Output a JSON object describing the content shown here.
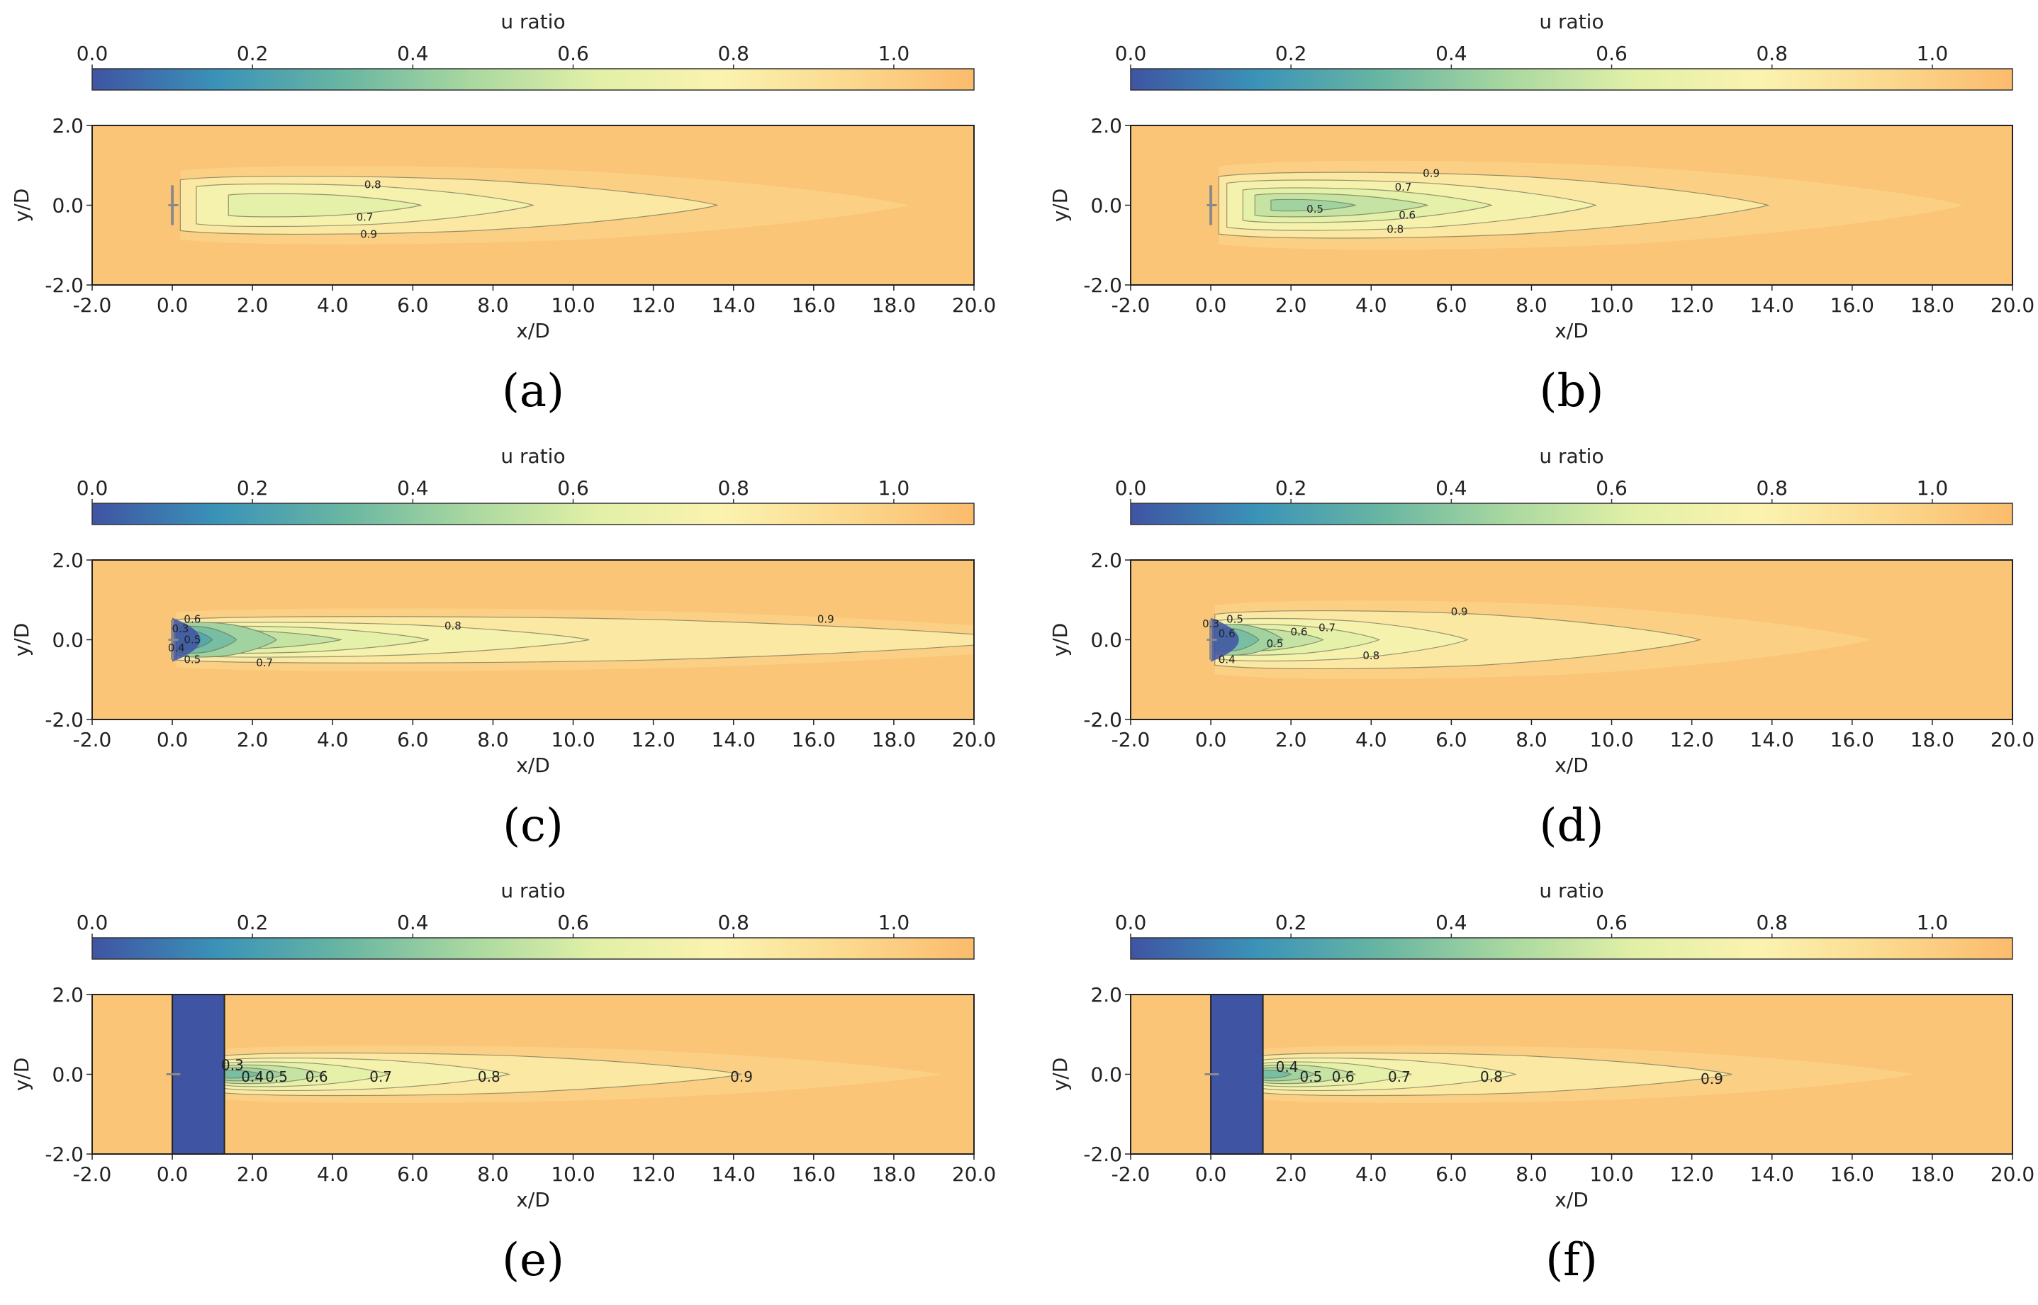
{
  "figure": {
    "colors": {
      "background": "#fbc578",
      "stops": [
        "#3f54a3",
        "#3a93b8",
        "#69b6a2",
        "#a9d8a0",
        "#e2f0a7",
        "#fbf3b0",
        "#fbd98e",
        "#fbbb6c"
      ]
    },
    "panels": [
      {
        "caption": "(a)",
        "colorbar": {
          "label": "u ratio",
          "ticks": [
            "0.0",
            "0.2",
            "0.4",
            "0.6",
            "0.8",
            "1.0"
          ],
          "range": [
            0,
            1.1
          ]
        },
        "chart_data": {
          "type": "heatmap",
          "title": "",
          "xlabel": "x/D",
          "ylabel": "y/D",
          "xlim": [
            -2,
            20
          ],
          "ylim": [
            -2,
            2
          ],
          "xticks": [
            "-2.0",
            "0.0",
            "2.0",
            "4.0",
            "6.0",
            "8.0",
            "10.0",
            "12.0",
            "14.0",
            "16.0",
            "18.0",
            "20.0"
          ],
          "yticks": [
            "2.0",
            "0.0",
            "-2.0"
          ],
          "blockage": null,
          "contours": [
            {
              "level": 0.9,
              "x_start": 0.2,
              "x_end": 13.6,
              "half_width": 0.75
            },
            {
              "level": 0.8,
              "x_start": 0.6,
              "x_end": 9.0,
              "half_width": 0.55
            },
            {
              "level": 0.7,
              "x_start": 1.4,
              "x_end": 6.2,
              "half_width": 0.3
            }
          ],
          "contour_labels": [
            {
              "text": "0.8",
              "x": 5.0,
              "y": 0.52
            },
            {
              "text": "0.7",
              "x": 4.8,
              "y": -0.3
            },
            {
              "text": "0.9",
              "x": 4.9,
              "y": -0.73
            }
          ]
        }
      },
      {
        "caption": "(b)",
        "colorbar": {
          "label": "u ratio",
          "ticks": [
            "0.0",
            "0.2",
            "0.4",
            "0.6",
            "0.8",
            "1.0"
          ],
          "range": [
            0,
            1.1
          ]
        },
        "chart_data": {
          "type": "heatmap",
          "title": "",
          "xlabel": "x/D",
          "ylabel": "y/D",
          "xlim": [
            -2,
            20
          ],
          "ylim": [
            -2,
            2
          ],
          "xticks": [
            "-2.0",
            "0.0",
            "2.0",
            "4.0",
            "6.0",
            "8.0",
            "10.0",
            "12.0",
            "14.0",
            "16.0",
            "18.0",
            "20.0"
          ],
          "yticks": [
            "2.0",
            "0.0",
            "-2.0"
          ],
          "blockage": null,
          "contours": [
            {
              "level": 0.9,
              "x_start": 0.2,
              "x_end": 13.9,
              "half_width": 0.85
            },
            {
              "level": 0.8,
              "x_start": 0.4,
              "x_end": 9.6,
              "half_width": 0.65
            },
            {
              "level": 0.7,
              "x_start": 0.8,
              "x_end": 7.0,
              "half_width": 0.45
            },
            {
              "level": 0.6,
              "x_start": 1.1,
              "x_end": 5.4,
              "half_width": 0.3
            },
            {
              "level": 0.5,
              "x_start": 1.5,
              "x_end": 3.6,
              "half_width": 0.15
            }
          ],
          "contour_labels": [
            {
              "text": "0.9",
              "x": 5.5,
              "y": 0.8
            },
            {
              "text": "0.7",
              "x": 4.8,
              "y": 0.45
            },
            {
              "text": "0.5",
              "x": 2.6,
              "y": -0.1
            },
            {
              "text": "0.6",
              "x": 4.9,
              "y": -0.25
            },
            {
              "text": "0.8",
              "x": 4.6,
              "y": -0.6
            }
          ]
        }
      },
      {
        "caption": "(c)",
        "colorbar": {
          "label": "u ratio",
          "ticks": [
            "0.0",
            "0.2",
            "0.4",
            "0.6",
            "0.8",
            "1.0"
          ],
          "range": [
            0,
            1.1
          ]
        },
        "chart_data": {
          "type": "heatmap",
          "title": "",
          "xlabel": "x/D",
          "ylabel": "y/D",
          "xlim": [
            -2,
            20
          ],
          "ylim": [
            -2,
            2
          ],
          "xticks": [
            "-2.0",
            "0.0",
            "2.0",
            "4.0",
            "6.0",
            "8.0",
            "10.0",
            "12.0",
            "14.0",
            "16.0",
            "18.0",
            "20.0"
          ],
          "yticks": [
            "2.0",
            "0.0",
            "-2.0"
          ],
          "blockage": null,
          "contours": [
            {
              "level": 0.9,
              "x_start": 0.1,
              "x_end": 21.5,
              "half_width": 0.6
            },
            {
              "level": 0.8,
              "x_start": 0.1,
              "x_end": 10.4,
              "half_width": 0.45
            },
            {
              "level": 0.7,
              "x_start": 0.1,
              "x_end": 6.4,
              "half_width": 0.35
            },
            {
              "level": 0.6,
              "x_start": 0.1,
              "x_end": 4.2,
              "half_width": 0.25
            },
            {
              "level": 0.5,
              "x_start": 0.1,
              "x_end": 2.6,
              "half_width": 0.45
            },
            {
              "level": 0.4,
              "x_start": 0.1,
              "x_end": 1.6,
              "half_width": 0.35
            },
            {
              "level": 0.3,
              "x_start": 0.1,
              "x_end": 1.0,
              "half_width": 0.25
            }
          ],
          "contour_labels": [
            {
              "text": "0.6",
              "x": 0.5,
              "y": 0.52
            },
            {
              "text": "0.3",
              "x": 0.2,
              "y": 0.28
            },
            {
              "text": "0.5",
              "x": 0.5,
              "y": 0.0
            },
            {
              "text": "0.4",
              "x": 0.1,
              "y": -0.2
            },
            {
              "text": "0.5",
              "x": 0.5,
              "y": -0.5
            },
            {
              "text": "0.7",
              "x": 2.3,
              "y": -0.58
            },
            {
              "text": "0.8",
              "x": 7.0,
              "y": 0.35
            },
            {
              "text": "0.9",
              "x": 16.3,
              "y": 0.52
            }
          ]
        }
      },
      {
        "caption": "(d)",
        "colorbar": {
          "label": "u ratio",
          "ticks": [
            "0.0",
            "0.2",
            "0.4",
            "0.6",
            "0.8",
            "1.0"
          ],
          "range": [
            0,
            1.1
          ]
        },
        "chart_data": {
          "type": "heatmap",
          "title": "",
          "xlabel": "x/D",
          "ylabel": "y/D",
          "xlim": [
            -2,
            20
          ],
          "ylim": [
            -2,
            2
          ],
          "xticks": [
            "-2.0",
            "0.0",
            "2.0",
            "4.0",
            "6.0",
            "8.0",
            "10.0",
            "12.0",
            "14.0",
            "16.0",
            "18.0",
            "20.0"
          ],
          "yticks": [
            "2.0",
            "0.0",
            "-2.0"
          ],
          "blockage": null,
          "contours": [
            {
              "level": 0.9,
              "x_start": 0.1,
              "x_end": 12.2,
              "half_width": 0.75
            },
            {
              "level": 0.8,
              "x_start": 0.1,
              "x_end": 6.4,
              "half_width": 0.55
            },
            {
              "level": 0.7,
              "x_start": 0.1,
              "x_end": 4.2,
              "half_width": 0.4
            },
            {
              "level": 0.6,
              "x_start": 0.1,
              "x_end": 2.8,
              "half_width": 0.3
            },
            {
              "level": 0.5,
              "x_start": 0.1,
              "x_end": 1.8,
              "half_width": 0.4
            },
            {
              "level": 0.4,
              "x_start": 0.1,
              "x_end": 1.2,
              "half_width": 0.3
            }
          ],
          "contour_labels": [
            {
              "text": "0.9",
              "x": 6.2,
              "y": 0.7
            },
            {
              "text": "0.5",
              "x": 0.6,
              "y": 0.52
            },
            {
              "text": "0.3",
              "x": 0.0,
              "y": 0.4
            },
            {
              "text": "0.6",
              "x": 0.4,
              "y": 0.15
            },
            {
              "text": "0.6",
              "x": 2.2,
              "y": 0.2
            },
            {
              "text": "0.7",
              "x": 2.9,
              "y": 0.3
            },
            {
              "text": "0.5",
              "x": 1.6,
              "y": -0.1
            },
            {
              "text": "0.4",
              "x": 0.4,
              "y": -0.5
            },
            {
              "text": "0.8",
              "x": 4.0,
              "y": -0.4
            }
          ]
        }
      },
      {
        "caption": "(e)",
        "colorbar": {
          "label": "u ratio",
          "ticks": [
            "0.0",
            "0.2",
            "0.4",
            "0.6",
            "0.8",
            "1.0"
          ],
          "range": [
            0,
            1.1
          ]
        },
        "chart_data": {
          "type": "heatmap",
          "title": "",
          "xlabel": "x/D",
          "ylabel": "y/D",
          "xlim": [
            -2,
            20
          ],
          "ylim": [
            -2,
            2
          ],
          "xticks": [
            "-2.0",
            "0.0",
            "2.0",
            "4.0",
            "6.0",
            "8.0",
            "10.0",
            "12.0",
            "14.0",
            "16.0",
            "18.0",
            "20.0"
          ],
          "yticks": [
            "2.0",
            "0.0",
            "-2.0"
          ],
          "blockage": {
            "x_start": 0.0,
            "x_end": 1.3
          },
          "contours": [
            {
              "level": 0.9,
              "x_start": 1.3,
              "x_end": 14.2,
              "half_width": 0.55
            },
            {
              "level": 0.8,
              "x_start": 1.3,
              "x_end": 8.4,
              "half_width": 0.42
            },
            {
              "level": 0.7,
              "x_start": 1.3,
              "x_end": 5.4,
              "half_width": 0.32
            },
            {
              "level": 0.6,
              "x_start": 1.3,
              "x_end": 3.8,
              "half_width": 0.24
            },
            {
              "level": 0.5,
              "x_start": 1.3,
              "x_end": 2.8,
              "half_width": 0.17
            },
            {
              "level": 0.4,
              "x_start": 1.3,
              "x_end": 2.2,
              "half_width": 0.1
            }
          ],
          "contour_labels": [
            {
              "text": "0.3",
              "x": 1.5,
              "y": 0.2
            },
            {
              "text": "0.4",
              "x": 2.0,
              "y": -0.1
            },
            {
              "text": "0.5",
              "x": 2.6,
              "y": -0.1
            },
            {
              "text": "0.6",
              "x": 3.6,
              "y": -0.1
            },
            {
              "text": "0.7",
              "x": 5.2,
              "y": -0.1
            },
            {
              "text": "0.8",
              "x": 7.9,
              "y": -0.1
            },
            {
              "text": "0.9",
              "x": 14.2,
              "y": -0.1
            }
          ]
        }
      },
      {
        "caption": "(f)",
        "colorbar": {
          "label": "u ratio",
          "ticks": [
            "0.0",
            "0.2",
            "0.4",
            "0.6",
            "0.8",
            "1.0"
          ],
          "range": [
            0,
            1.1
          ]
        },
        "chart_data": {
          "type": "heatmap",
          "title": "",
          "xlabel": "x/D",
          "ylabel": "y/D",
          "xlim": [
            -2,
            20
          ],
          "ylim": [
            -2,
            2
          ],
          "xticks": [
            "-2.0",
            "0.0",
            "2.0",
            "4.0",
            "6.0",
            "8.0",
            "10.0",
            "12.0",
            "14.0",
            "16.0",
            "18.0",
            "20.0"
          ],
          "yticks": [
            "2.0",
            "0.0",
            "-2.0"
          ],
          "blockage": {
            "x_start": 0.0,
            "x_end": 1.3
          },
          "contours": [
            {
              "level": 0.9,
              "x_start": 1.3,
              "x_end": 13.0,
              "half_width": 0.55
            },
            {
              "level": 0.8,
              "x_start": 1.3,
              "x_end": 7.6,
              "half_width": 0.42
            },
            {
              "level": 0.7,
              "x_start": 1.3,
              "x_end": 5.0,
              "half_width": 0.32
            },
            {
              "level": 0.6,
              "x_start": 1.3,
              "x_end": 3.6,
              "half_width": 0.24
            },
            {
              "level": 0.5,
              "x_start": 1.3,
              "x_end": 2.6,
              "half_width": 0.17
            },
            {
              "level": 0.4,
              "x_start": 1.3,
              "x_end": 2.0,
              "half_width": 0.1
            }
          ],
          "contour_labels": [
            {
              "text": "0.4",
              "x": 1.9,
              "y": 0.15
            },
            {
              "text": "0.5",
              "x": 2.5,
              "y": -0.1
            },
            {
              "text": "0.6",
              "x": 3.3,
              "y": -0.1
            },
            {
              "text": "0.7",
              "x": 4.7,
              "y": -0.1
            },
            {
              "text": "0.8",
              "x": 7.0,
              "y": -0.1
            },
            {
              "text": "0.9",
              "x": 12.5,
              "y": -0.15
            }
          ]
        }
      }
    ]
  }
}
